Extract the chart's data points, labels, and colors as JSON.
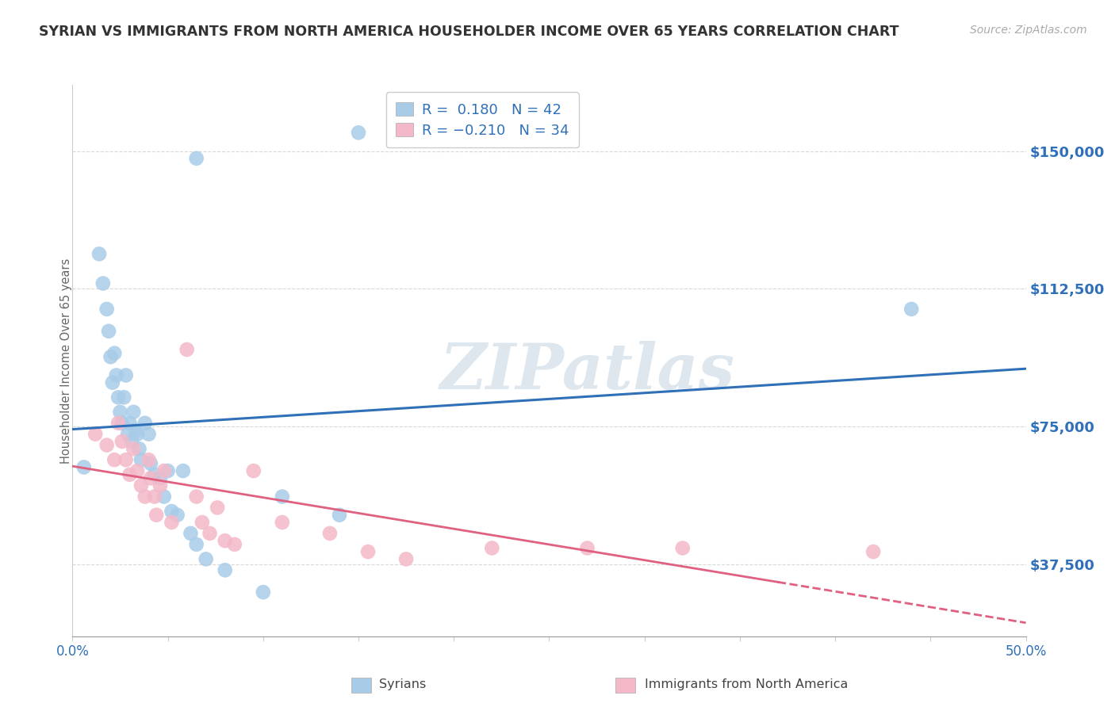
{
  "title": "SYRIAN VS IMMIGRANTS FROM NORTH AMERICA HOUSEHOLDER INCOME OVER 65 YEARS CORRELATION CHART",
  "source": "Source: ZipAtlas.com",
  "ylabel": "Householder Income Over 65 years",
  "xlim": [
    0.0,
    0.5
  ],
  "ylim": [
    18000,
    168000
  ],
  "yticks": [
    37500,
    75000,
    112500,
    150000
  ],
  "ytick_labels": [
    "$37,500",
    "$75,000",
    "$112,500",
    "$150,000"
  ],
  "xtick_positions": [
    0.0,
    0.05,
    0.1,
    0.15,
    0.2,
    0.25,
    0.3,
    0.35,
    0.4,
    0.45,
    0.5
  ],
  "xtick_labels_sparse": {
    "0.0": "0.0%",
    "0.5": "50.0%"
  },
  "watermark": "ZIPatlas",
  "legend_r1": "R =  0.180",
  "legend_n1": "N = 42",
  "legend_r2": "R = -0.210",
  "legend_n2": "N = 34",
  "label_syrians": "Syrians",
  "label_north_america": "Immigrants from North America",
  "color_blue": "#a8cce8",
  "color_pink": "#f4b8c8",
  "color_blue_line": "#3070b8",
  "color_pink_line": "#e06080",
  "color_title": "#333333",
  "color_source": "#aaaaaa",
  "color_ytick_label": "#3070b8",
  "color_xtick_label": "#3070b8",
  "background_color": "#ffffff",
  "grid_color": "#d8d8d8",
  "syrians_x": [
    0.006,
    0.014,
    0.016,
    0.018,
    0.019,
    0.02,
    0.021,
    0.022,
    0.023,
    0.024,
    0.025,
    0.026,
    0.027,
    0.028,
    0.029,
    0.03,
    0.031,
    0.032,
    0.033,
    0.034,
    0.035,
    0.036,
    0.038,
    0.04,
    0.041,
    0.043,
    0.046,
    0.048,
    0.05,
    0.052,
    0.055,
    0.058,
    0.062,
    0.065,
    0.07,
    0.08,
    0.1,
    0.11,
    0.14,
    0.15,
    0.44,
    0.065
  ],
  "syrians_y": [
    64000,
    122000,
    114000,
    107000,
    101000,
    94000,
    87000,
    95000,
    89000,
    83000,
    79000,
    76000,
    83000,
    89000,
    73000,
    76000,
    71000,
    79000,
    74000,
    73000,
    69000,
    66000,
    76000,
    73000,
    65000,
    62000,
    61000,
    56000,
    63000,
    52000,
    51000,
    63000,
    46000,
    43000,
    39000,
    36000,
    30000,
    56000,
    51000,
    155000,
    107000,
    148000
  ],
  "north_america_x": [
    0.012,
    0.018,
    0.022,
    0.024,
    0.026,
    0.028,
    0.03,
    0.032,
    0.034,
    0.036,
    0.038,
    0.04,
    0.041,
    0.043,
    0.044,
    0.046,
    0.048,
    0.052,
    0.06,
    0.065,
    0.068,
    0.072,
    0.076,
    0.08,
    0.085,
    0.095,
    0.11,
    0.135,
    0.155,
    0.175,
    0.22,
    0.27,
    0.32,
    0.42
  ],
  "north_america_y": [
    73000,
    70000,
    66000,
    76000,
    71000,
    66000,
    62000,
    69000,
    63000,
    59000,
    56000,
    66000,
    61000,
    56000,
    51000,
    59000,
    63000,
    49000,
    96000,
    56000,
    49000,
    46000,
    53000,
    44000,
    43000,
    63000,
    49000,
    46000,
    41000,
    39000,
    42000,
    42000,
    42000,
    41000
  ]
}
